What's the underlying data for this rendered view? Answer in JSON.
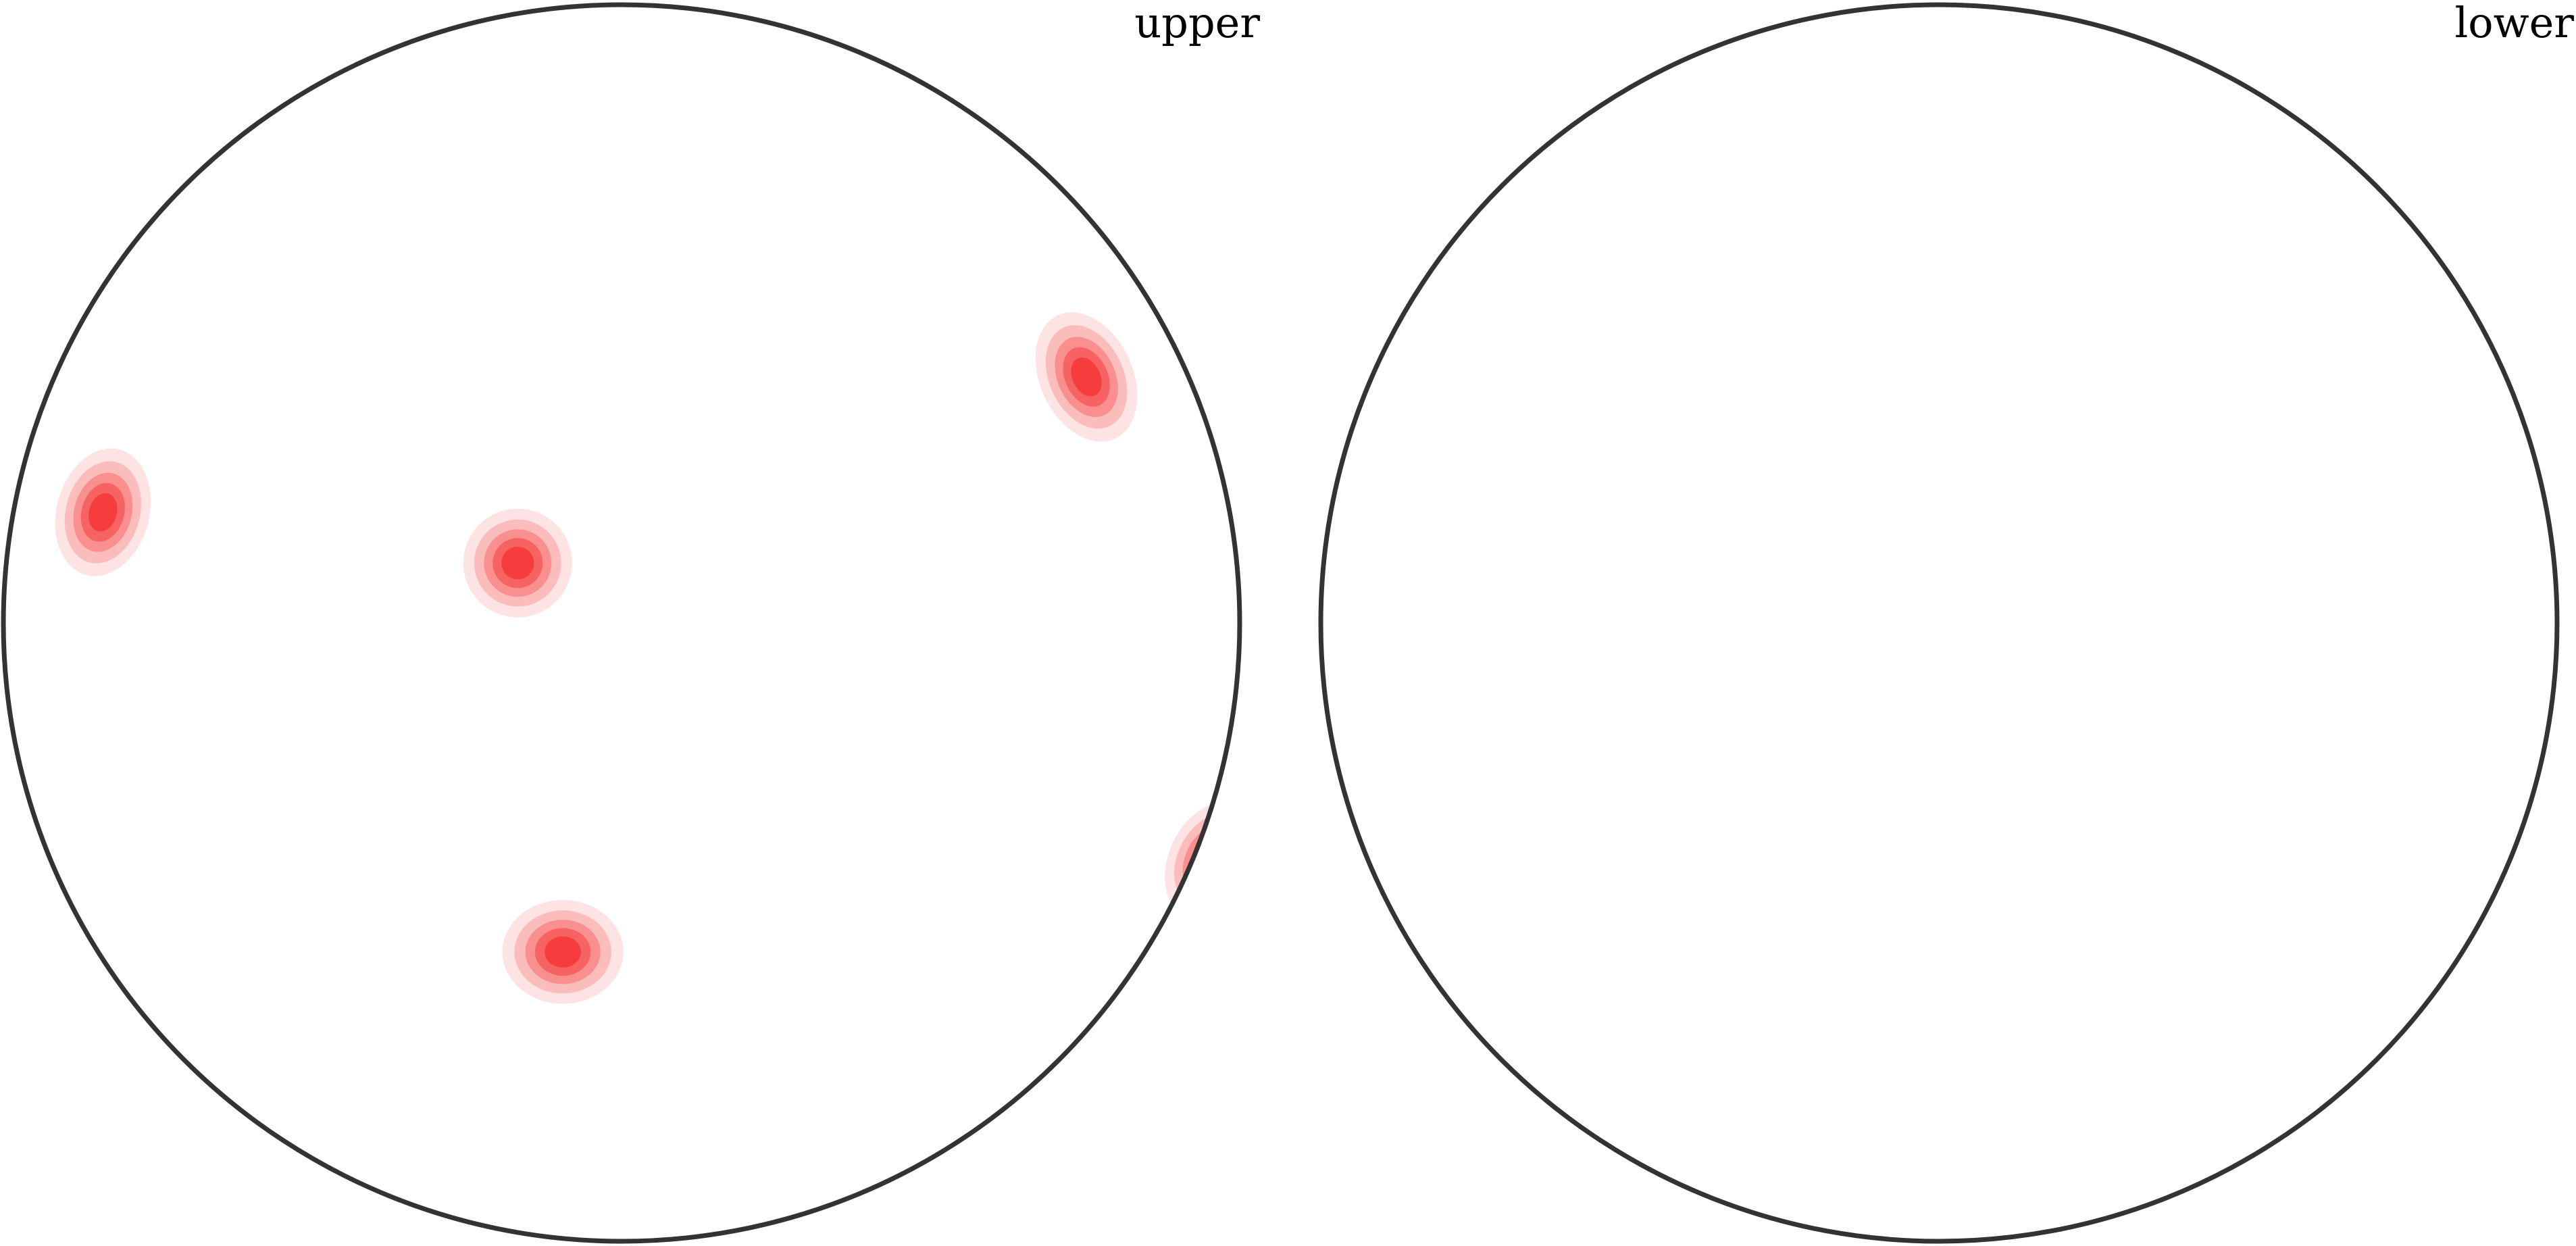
{
  "chart_data": {
    "type": "heatmap",
    "panels": [
      {
        "name": "upper",
        "label": "upper",
        "density_peaks": [
          {
            "x": -0.839,
            "y": 0.179,
            "sx": 0.075,
            "sy": 0.105,
            "rot": 15
          },
          {
            "x": -0.168,
            "y": 0.097,
            "sx": 0.088,
            "sy": 0.088,
            "rot": 0
          },
          {
            "x": 0.752,
            "y": 0.398,
            "sx": 0.075,
            "sy": 0.11,
            "rot": -25
          },
          {
            "x": -0.095,
            "y": -0.532,
            "sx": 0.098,
            "sy": 0.084,
            "rot": 0
          },
          {
            "x": 0.955,
            "y": -0.385,
            "sx": 0.07,
            "sy": 0.1,
            "rot": 25
          }
        ]
      },
      {
        "name": "lower",
        "label": "lower",
        "density_peaks": []
      }
    ],
    "contour_colors": [
      "#fde3e3",
      "#fbbcbc",
      "#f98f8f",
      "#f76363",
      "#f53d3d"
    ]
  }
}
